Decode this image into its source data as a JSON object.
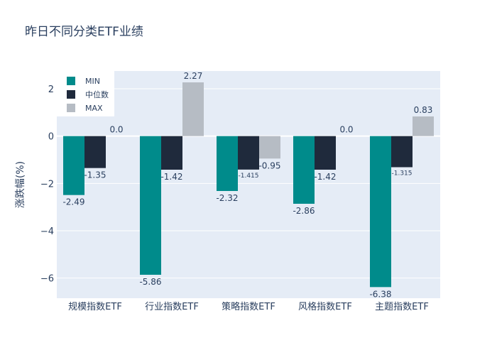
{
  "chart_data": {
    "type": "bar",
    "title": "昨日不同分类ETF业绩",
    "xlabel": "",
    "ylabel": "涨跌幅(%)",
    "ylim": [
      -6.85,
      2.75
    ],
    "yticks": [
      2,
      0,
      -2,
      -4,
      -6
    ],
    "grid": true,
    "legend_position": "top-left",
    "categories": [
      "规模指数ETF",
      "行业指数ETF",
      "策略指数ETF",
      "风格指数ETF",
      "主题指数ETF"
    ],
    "series": [
      {
        "name": "MIN",
        "color": "#008b8b",
        "values": [
          -2.49,
          -5.86,
          -2.32,
          -2.86,
          -6.38
        ],
        "labels": [
          "-2.49",
          "-5.86",
          "-2.32",
          "-2.86",
          "-6.38"
        ]
      },
      {
        "name": "中位数",
        "color": "#1f2a3c",
        "values": [
          -1.35,
          -1.42,
          -1.415,
          -1.42,
          -1.315
        ],
        "labels": [
          "-1.35",
          "-1.42",
          "-1.415",
          "-1.42",
          "-1.315"
        ]
      },
      {
        "name": "MAX",
        "color": "#b6bcc4",
        "values": [
          0.0,
          2.27,
          -0.95,
          0.0,
          0.83
        ],
        "labels": [
          "0.0",
          "2.27",
          "-0.95",
          "0.0",
          "0.83"
        ]
      }
    ]
  }
}
